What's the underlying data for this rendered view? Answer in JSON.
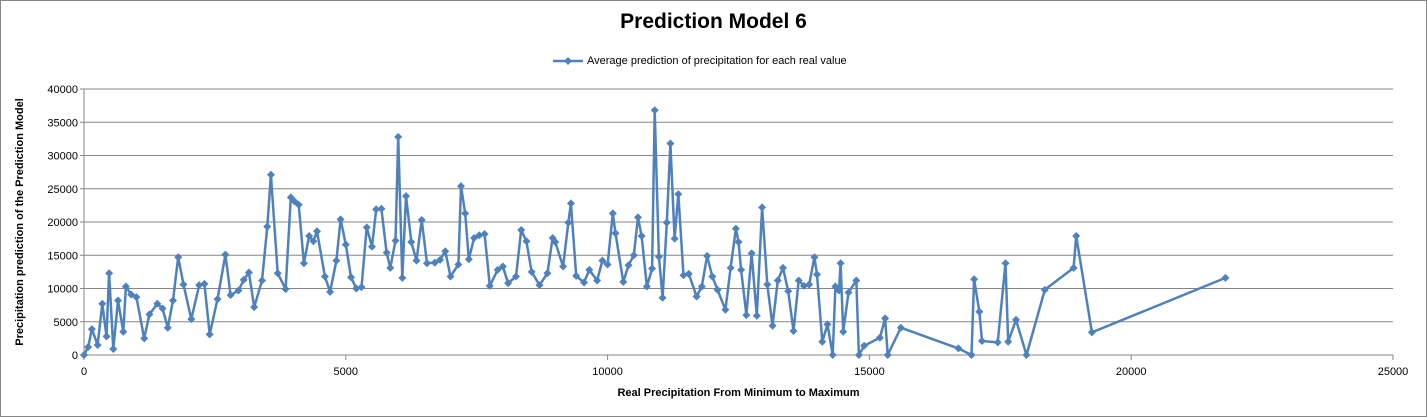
{
  "chart_data": {
    "type": "line",
    "title": "Prediction Model 6",
    "xlabel": "Real Precipitation From Minimum to Maximum",
    "ylabel": "Precipitation prediction of the Prediction Model",
    "xlim": [
      0,
      25000
    ],
    "ylim": [
      0,
      40000
    ],
    "x_ticks": [
      "0",
      "5000",
      "10000",
      "15000",
      "20000",
      "25000"
    ],
    "y_ticks": [
      "0",
      "5000",
      "10000",
      "15000",
      "20000",
      "25000",
      "30000",
      "35000",
      "40000"
    ],
    "grid": "horizontal",
    "legend_position": "top",
    "series": [
      {
        "name": "Average prediction of precipitation for each real value",
        "color": "#4F81BD",
        "marker": "diamond",
        "points": [
          [
            0,
            0
          ],
          [
            80,
            1200
          ],
          [
            150,
            3900
          ],
          [
            260,
            1500
          ],
          [
            350,
            7700
          ],
          [
            430,
            2800
          ],
          [
            480,
            12300
          ],
          [
            560,
            900
          ],
          [
            650,
            8200
          ],
          [
            750,
            3500
          ],
          [
            800,
            10300
          ],
          [
            900,
            9100
          ],
          [
            1000,
            8700
          ],
          [
            1150,
            2500
          ],
          [
            1250,
            6100
          ],
          [
            1400,
            7700
          ],
          [
            1500,
            7000
          ],
          [
            1600,
            4100
          ],
          [
            1700,
            8200
          ],
          [
            1800,
            14700
          ],
          [
            1900,
            10600
          ],
          [
            2050,
            5400
          ],
          [
            2200,
            10500
          ],
          [
            2300,
            10700
          ],
          [
            2400,
            3100
          ],
          [
            2550,
            8400
          ],
          [
            2700,
            15100
          ],
          [
            2800,
            9000
          ],
          [
            2950,
            9700
          ],
          [
            3050,
            11300
          ],
          [
            3150,
            12400
          ],
          [
            3250,
            7200
          ],
          [
            3400,
            11200
          ],
          [
            3500,
            19300
          ],
          [
            3570,
            27100
          ],
          [
            3700,
            12300
          ],
          [
            3850,
            9900
          ],
          [
            3950,
            23700
          ],
          [
            4020,
            23100
          ],
          [
            4100,
            22600
          ],
          [
            4200,
            13800
          ],
          [
            4300,
            17900
          ],
          [
            4380,
            17100
          ],
          [
            4450,
            18600
          ],
          [
            4600,
            11800
          ],
          [
            4700,
            9500
          ],
          [
            4820,
            14200
          ],
          [
            4900,
            20400
          ],
          [
            5000,
            16600
          ],
          [
            5100,
            11700
          ],
          [
            5200,
            10000
          ],
          [
            5300,
            10200
          ],
          [
            5400,
            19200
          ],
          [
            5500,
            16300
          ],
          [
            5580,
            21900
          ],
          [
            5680,
            22000
          ],
          [
            5780,
            15400
          ],
          [
            5850,
            13100
          ],
          [
            5950,
            17200
          ],
          [
            6000,
            32800
          ],
          [
            6080,
            11600
          ],
          [
            6150,
            23900
          ],
          [
            6250,
            17000
          ],
          [
            6350,
            14200
          ],
          [
            6450,
            20300
          ],
          [
            6550,
            13800
          ],
          [
            6700,
            13900
          ],
          [
            6800,
            14300
          ],
          [
            6900,
            15600
          ],
          [
            7000,
            11800
          ],
          [
            7150,
            13600
          ],
          [
            7200,
            25400
          ],
          [
            7280,
            21300
          ],
          [
            7350,
            14400
          ],
          [
            7450,
            17600
          ],
          [
            7550,
            18000
          ],
          [
            7650,
            18200
          ],
          [
            7750,
            10400
          ],
          [
            7900,
            12800
          ],
          [
            8000,
            13300
          ],
          [
            8100,
            10800
          ],
          [
            8250,
            11800
          ],
          [
            8350,
            18800
          ],
          [
            8450,
            17100
          ],
          [
            8550,
            12500
          ],
          [
            8700,
            10500
          ],
          [
            8850,
            12300
          ],
          [
            8950,
            17600
          ],
          [
            9000,
            17000
          ],
          [
            9150,
            13300
          ],
          [
            9250,
            19900
          ],
          [
            9300,
            22800
          ],
          [
            9400,
            11900
          ],
          [
            9550,
            10900
          ],
          [
            9650,
            12800
          ],
          [
            9800,
            11200
          ],
          [
            9900,
            14200
          ],
          [
            10000,
            13600
          ],
          [
            10100,
            21300
          ],
          [
            10150,
            18300
          ],
          [
            10300,
            11000
          ],
          [
            10400,
            13500
          ],
          [
            10500,
            15000
          ],
          [
            10580,
            20700
          ],
          [
            10650,
            17900
          ],
          [
            10750,
            10300
          ],
          [
            10850,
            13000
          ],
          [
            10900,
            36800
          ],
          [
            10980,
            14800
          ],
          [
            11050,
            8600
          ],
          [
            11130,
            19900
          ],
          [
            11200,
            31800
          ],
          [
            11280,
            17500
          ],
          [
            11350,
            24200
          ],
          [
            11450,
            12000
          ],
          [
            11550,
            12200
          ],
          [
            11700,
            8800
          ],
          [
            11800,
            10300
          ],
          [
            11900,
            14900
          ],
          [
            12000,
            11800
          ],
          [
            12100,
            9800
          ],
          [
            12250,
            6800
          ],
          [
            12350,
            13100
          ],
          [
            12450,
            19000
          ],
          [
            12500,
            17000
          ],
          [
            12550,
            12800
          ],
          [
            12650,
            6000
          ],
          [
            12750,
            15300
          ],
          [
            12850,
            5900
          ],
          [
            12950,
            22200
          ],
          [
            13050,
            10600
          ],
          [
            13150,
            4400
          ],
          [
            13250,
            11200
          ],
          [
            13350,
            13100
          ],
          [
            13450,
            9600
          ],
          [
            13550,
            3600
          ],
          [
            13650,
            11200
          ],
          [
            13750,
            10400
          ],
          [
            13850,
            10600
          ],
          [
            13950,
            14700
          ],
          [
            14000,
            12100
          ],
          [
            14100,
            2000
          ],
          [
            14200,
            4600
          ],
          [
            14300,
            0
          ],
          [
            14350,
            10300
          ],
          [
            14420,
            9700
          ],
          [
            14450,
            13800
          ],
          [
            14500,
            3500
          ],
          [
            14600,
            9400
          ],
          [
            14750,
            11200
          ],
          [
            14800,
            0
          ],
          [
            14900,
            1400
          ],
          [
            15200,
            2600
          ],
          [
            15300,
            5500
          ],
          [
            15350,
            0
          ],
          [
            15600,
            4100
          ],
          [
            16700,
            1000
          ],
          [
            16950,
            0
          ],
          [
            17000,
            11400
          ],
          [
            17100,
            6500
          ],
          [
            17150,
            2100
          ],
          [
            17450,
            1900
          ],
          [
            17600,
            13800
          ],
          [
            17650,
            2000
          ],
          [
            17800,
            5300
          ],
          [
            18000,
            0
          ],
          [
            18350,
            9800
          ],
          [
            18900,
            13100
          ],
          [
            18950,
            17900
          ],
          [
            19250,
            3400
          ],
          [
            21800,
            11600
          ]
        ]
      }
    ]
  }
}
